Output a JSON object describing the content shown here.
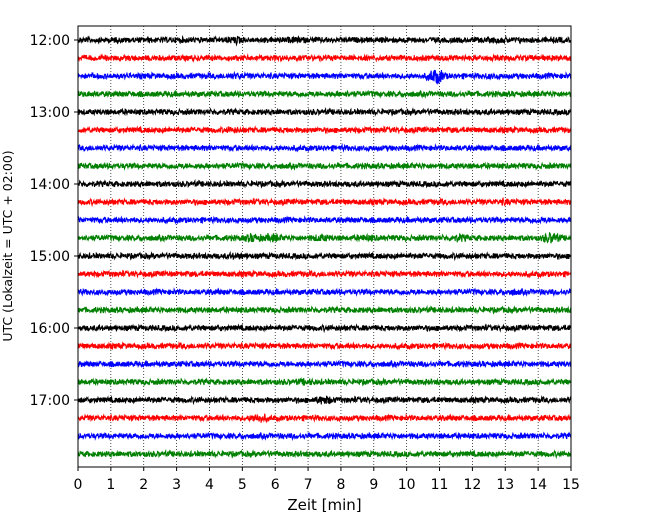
{
  "chart_data": {
    "type": "line",
    "title": "",
    "xlabel": "Zeit  [min]",
    "ylabel": "UTC (Lokalzeit = UTC + 02:00)",
    "xlim": [
      0,
      15
    ],
    "x_ticks": [
      0,
      1,
      2,
      3,
      4,
      5,
      6,
      7,
      8,
      9,
      10,
      11,
      12,
      13,
      14,
      15
    ],
    "x_tick_labels": [
      "0",
      "1",
      "2",
      "3",
      "4",
      "5",
      "6",
      "7",
      "8",
      "9",
      "10",
      "11",
      "12",
      "13",
      "14",
      "15"
    ],
    "y_tick_labels": [
      "12:00",
      "13:00",
      "14:00",
      "15:00",
      "16:00",
      "17:00"
    ],
    "y_tick_hours": [
      12,
      13,
      14,
      15,
      16,
      17
    ],
    "trace_interval_min": 15,
    "trace_start_times": [
      "12:00",
      "12:15",
      "12:30",
      "12:45",
      "13:00",
      "13:15",
      "13:30",
      "13:45",
      "14:00",
      "14:15",
      "14:30",
      "14:45",
      "15:00",
      "15:15",
      "15:30",
      "15:45",
      "16:00",
      "16:15",
      "16:30",
      "16:45",
      "17:00",
      "17:15",
      "17:30",
      "17:45"
    ],
    "trace_colors": [
      "#000000",
      "#ff0000",
      "#0000ff",
      "#008000"
    ],
    "grid": "vertical dotted",
    "events": [
      {
        "trace": 0,
        "minute": 4.8,
        "strength": 1.6
      },
      {
        "trace": 0,
        "minute": 6.6,
        "strength": 1.3
      },
      {
        "trace": 0,
        "minute": 12.8,
        "strength": 1.3
      },
      {
        "trace": 2,
        "minute": 4.8,
        "strength": 1.4
      },
      {
        "trace": 2,
        "minute": 10.9,
        "strength": 3.2
      },
      {
        "trace": 2,
        "minute": 12.6,
        "strength": 1.2
      },
      {
        "trace": 3,
        "minute": 0.3,
        "strength": 1.2
      },
      {
        "trace": 3,
        "minute": 8.1,
        "strength": 1.3
      },
      {
        "trace": 5,
        "minute": 4.7,
        "strength": 1.3
      },
      {
        "trace": 9,
        "minute": 13.0,
        "strength": 1.3
      },
      {
        "trace": 10,
        "minute": 14.0,
        "strength": 1.3
      },
      {
        "trace": 11,
        "minute": 5.3,
        "strength": 1.8
      },
      {
        "trace": 11,
        "minute": 5.9,
        "strength": 1.7
      },
      {
        "trace": 11,
        "minute": 7.4,
        "strength": 1.6
      },
      {
        "trace": 11,
        "minute": 8.8,
        "strength": 1.4
      },
      {
        "trace": 11,
        "minute": 11.6,
        "strength": 1.6
      },
      {
        "trace": 11,
        "minute": 14.4,
        "strength": 2.2
      },
      {
        "trace": 12,
        "minute": 4.8,
        "strength": 1.4
      },
      {
        "trace": 14,
        "minute": 13.2,
        "strength": 1.3
      },
      {
        "trace": 19,
        "minute": 6.9,
        "strength": 1.4
      },
      {
        "trace": 20,
        "minute": 7.5,
        "strength": 1.9
      },
      {
        "trace": 21,
        "minute": 5.5,
        "strength": 2.0
      }
    ]
  }
}
